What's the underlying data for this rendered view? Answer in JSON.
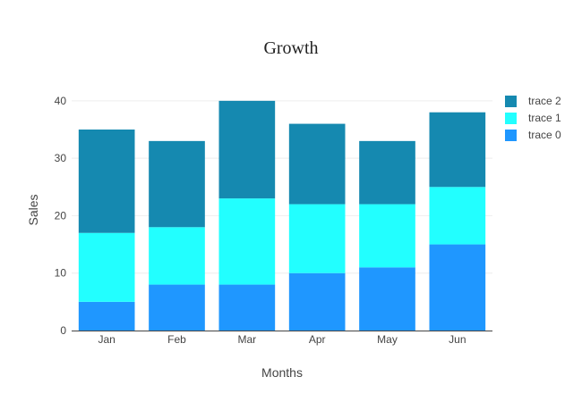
{
  "chart_data": {
    "type": "bar",
    "stacked": true,
    "title": "Growth",
    "xlabel": "Months",
    "ylabel": "Sales",
    "categories": [
      "Jan",
      "Feb",
      "Mar",
      "Apr",
      "May",
      "Jun"
    ],
    "ylim": [
      0,
      42
    ],
    "yticks": [
      0,
      10,
      20,
      30,
      40
    ],
    "grid": true,
    "legend_position": "top-right",
    "series": [
      {
        "name": "trace 0",
        "values": [
          5,
          8,
          8,
          10,
          11,
          15
        ],
        "color": "#1f97ff"
      },
      {
        "name": "trace 1",
        "values": [
          12,
          10,
          15,
          12,
          11,
          10
        ],
        "color": "#22ffff"
      },
      {
        "name": "trace 2",
        "values": [
          18,
          15,
          17,
          14,
          11,
          13
        ],
        "color": "#1589b0"
      }
    ]
  }
}
